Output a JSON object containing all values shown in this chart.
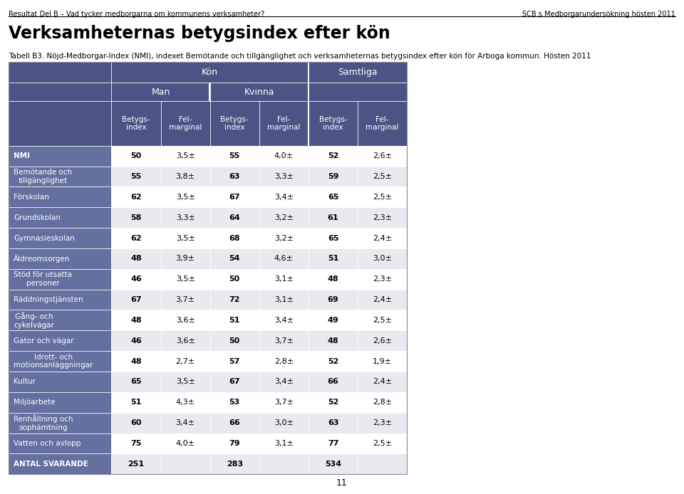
{
  "page_header_left": "Resultat Del B – Vad tycker medborgarna om kommunens verksamheter?",
  "page_header_right": "SCB:s Medborgarundersökning hösten 2011",
  "title": "Verksamheternas betygsindex efter kön",
  "subtitle": "Tabell B3. Nöjd-Medborgar-Index (NMI), indexet Bemötande och tillgänglighet och verksamheternas betygsindex efter kön för Arboga kommun. Hösten 2011",
  "header_kon": "Kön",
  "header_man": "Man",
  "header_kvinna": "Kvinna",
  "header_samtliga": "Samtliga",
  "col_betygs": "Betygs-\nindex",
  "col_fel": "Fel-\nmarginal",
  "page_number": "11",
  "header_bg": "#4a5585",
  "header_bg2": "#6370a0",
  "row_bg_odd": "#ffffff",
  "row_bg_even": "#e8eaf0",
  "header_text_color": "#ffffff",
  "rows": [
    {
      "label": "NMI",
      "man_bi": "50",
      "man_fel": "3,5±",
      "kv_bi": "55",
      "kv_fel": "4,0±",
      "sam_bi": "52",
      "sam_fel": "2,6±",
      "bold_label": true
    },
    {
      "label": "Bemötande och\ntillgänglighet",
      "man_bi": "55",
      "man_fel": "3,8±",
      "kv_bi": "63",
      "kv_fel": "3,3±",
      "sam_bi": "59",
      "sam_fel": "2,5±",
      "bold_label": false
    },
    {
      "label": "Förskolan",
      "man_bi": "62",
      "man_fel": "3,5±",
      "kv_bi": "67",
      "kv_fel": "3,4±",
      "sam_bi": "65",
      "sam_fel": "2,5±",
      "bold_label": false
    },
    {
      "label": "Grundskolan",
      "man_bi": "58",
      "man_fel": "3,3±",
      "kv_bi": "64",
      "kv_fel": "3,2±",
      "sam_bi": "61",
      "sam_fel": "2,3±",
      "bold_label": false
    },
    {
      "label": "Gymnasieskolan",
      "man_bi": "62",
      "man_fel": "3,5±",
      "kv_bi": "68",
      "kv_fel": "3,2±",
      "sam_bi": "65",
      "sam_fel": "2,4±",
      "bold_label": false
    },
    {
      "label": "Äldreomsorgen",
      "man_bi": "48",
      "man_fel": "3,9±",
      "kv_bi": "54",
      "kv_fel": "4,6±",
      "sam_bi": "51",
      "sam_fel": "3,0±",
      "bold_label": false
    },
    {
      "label": "Stöd för utsatta\npersoner",
      "man_bi": "46",
      "man_fel": "3,5±",
      "kv_bi": "50",
      "kv_fel": "3,1±",
      "sam_bi": "48",
      "sam_fel": "2,3±",
      "bold_label": false
    },
    {
      "label": "Räddningstjänsten",
      "man_bi": "67",
      "man_fel": "3,7±",
      "kv_bi": "72",
      "kv_fel": "3,1±",
      "sam_bi": "69",
      "sam_fel": "2,4±",
      "bold_label": false
    },
    {
      "label": "Gång- och\ncykelvägar",
      "man_bi": "48",
      "man_fel": "3,6±",
      "kv_bi": "51",
      "kv_fel": "3,4±",
      "sam_bi": "49",
      "sam_fel": "2,5±",
      "bold_label": false
    },
    {
      "label": "Gator och vägar",
      "man_bi": "46",
      "man_fel": "3,6±",
      "kv_bi": "50",
      "kv_fel": "3,7±",
      "sam_bi": "48",
      "sam_fel": "2,6±",
      "bold_label": false
    },
    {
      "label": "Idrott- och\nmotionsanläggningar",
      "man_bi": "48",
      "man_fel": "2,7±",
      "kv_bi": "57",
      "kv_fel": "2,8±",
      "sam_bi": "52",
      "sam_fel": "1,9±",
      "bold_label": false
    },
    {
      "label": "Kultur",
      "man_bi": "65",
      "man_fel": "3,5±",
      "kv_bi": "67",
      "kv_fel": "3,4±",
      "sam_bi": "66",
      "sam_fel": "2,4±",
      "bold_label": false
    },
    {
      "label": "Miljöarbete",
      "man_bi": "51",
      "man_fel": "4,3±",
      "kv_bi": "53",
      "kv_fel": "3,7±",
      "sam_bi": "52",
      "sam_fel": "2,8±",
      "bold_label": false
    },
    {
      "label": "Renhållning och\nsophämtning",
      "man_bi": "60",
      "man_fel": "3,4±",
      "kv_bi": "66",
      "kv_fel": "3,0±",
      "sam_bi": "63",
      "sam_fel": "2,3±",
      "bold_label": false
    },
    {
      "label": "Vatten och avlopp",
      "man_bi": "75",
      "man_fel": "4,0±",
      "kv_bi": "79",
      "kv_fel": "3,1±",
      "sam_bi": "77",
      "sam_fel": "2,5±",
      "bold_label": false
    },
    {
      "label": "ANTAL SVARANDE",
      "man_bi": "251",
      "man_fel": "",
      "kv_bi": "283",
      "kv_fel": "",
      "sam_bi": "534",
      "sam_fel": "",
      "bold_label": true
    }
  ]
}
